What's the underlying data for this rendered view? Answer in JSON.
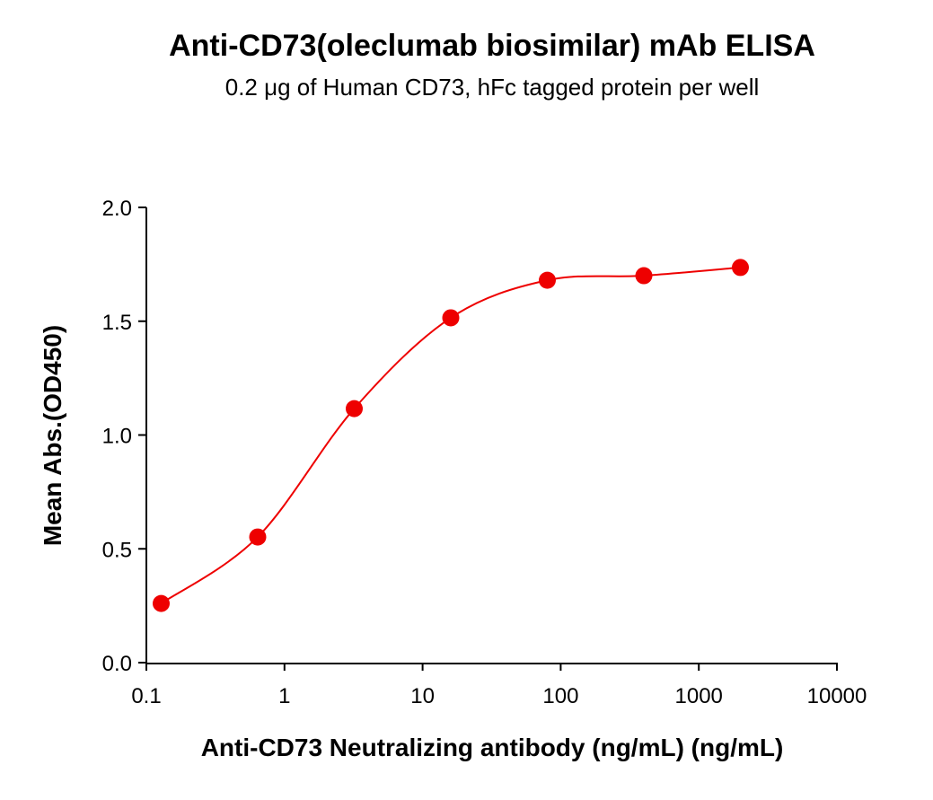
{
  "chart_data": {
    "type": "scatter",
    "title": "Anti-CD73(oleclumab biosimilar) mAb ELISA",
    "subtitle": "0.2 μg of Human CD73, hFc tagged protein per well",
    "x_label": "Anti-CD73 Neutralizing antibody (ng/mL) (ng/mL)",
    "y_label": "Mean Abs.(OD450)",
    "x": [
      0.128,
      0.64,
      3.2,
      16,
      80,
      400,
      2000
    ],
    "series": [
      {
        "color": "#ee0000",
        "values": [
          0.26,
          0.552,
          1.116,
          1.515,
          1.68,
          1.7,
          1.736
        ]
      }
    ],
    "xscale": "log",
    "xlim": [
      0.1,
      10000
    ],
    "xticks": [
      0.1,
      1,
      10,
      100,
      1000,
      10000
    ],
    "ylim": [
      0,
      2
    ],
    "yticks": [
      {
        "value": 0,
        "label": "0.0"
      },
      0.5,
      {
        "value": 1,
        "label": "1.0"
      },
      1.5,
      {
        "value": 2,
        "label": "2.0"
      }
    ]
  }
}
